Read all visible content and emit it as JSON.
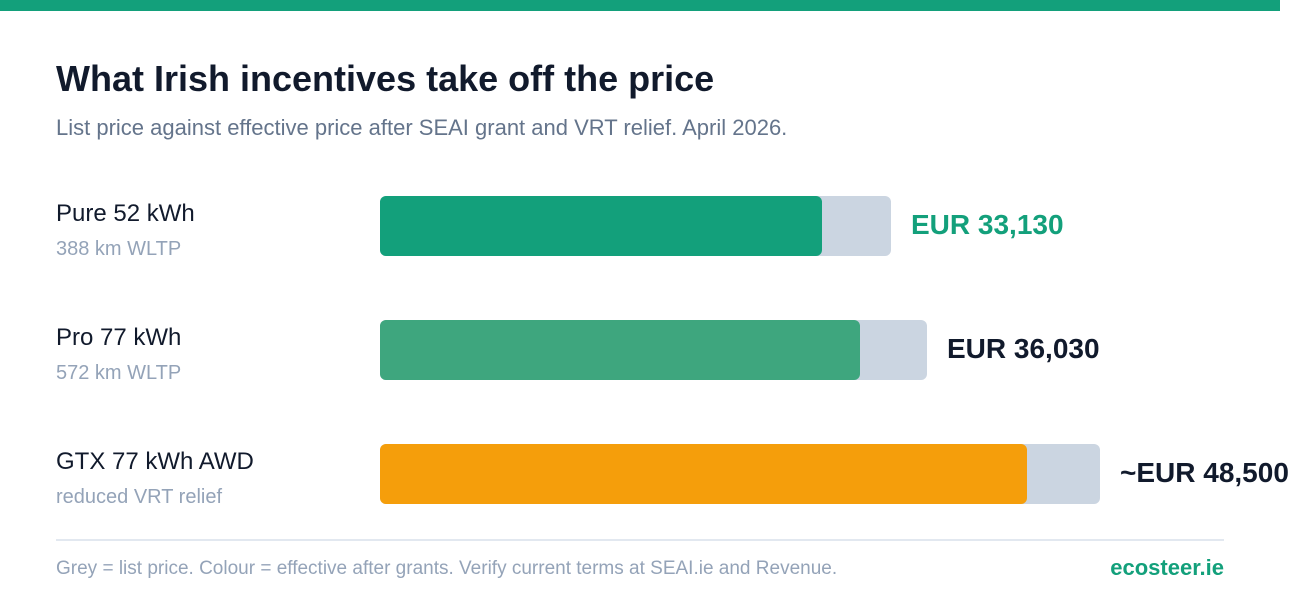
{
  "colors": {
    "accent": "#13a07b",
    "title": "#111a2c",
    "subtitle": "#64748b",
    "muted": "#94a3b8",
    "list_bar": "#cbd5e1"
  },
  "chart_data": {
    "type": "bar",
    "orientation": "horizontal",
    "title": "What Irish incentives take off the price",
    "subtitle": "List price against effective price after SEAI grant and VRT relief. April 2026.",
    "categories": [
      "Pure 52 kWh",
      "Pro 77 kWh",
      "GTX 77 kWh AWD"
    ],
    "sublabels": [
      "388 km WLTP",
      "572 km WLTP",
      "reduced VRT relief"
    ],
    "value_labels": [
      "EUR 33,130",
      "EUR 36,030",
      "~EUR 48,500"
    ],
    "value_label_colors": [
      "#13a07b",
      "#111a2c",
      "#111a2c"
    ],
    "series": [
      {
        "name": "Grey = list price",
        "color": "#cbd5e1",
        "values": [
          38300,
          41000,
          54000
        ]
      },
      {
        "name": "Colour = effective after grants",
        "colors": [
          "#13a07b",
          "#3ea67e",
          "#f59e0b"
        ],
        "values": [
          33130,
          36030,
          48500
        ]
      }
    ],
    "xlim": [
      0,
      54000
    ],
    "grid": false,
    "legend": "footnote"
  },
  "footer": {
    "note": "Grey = list price. Colour = effective after grants. Verify current terms at SEAI.ie and Revenue.",
    "brand": "ecosteer.ie"
  }
}
